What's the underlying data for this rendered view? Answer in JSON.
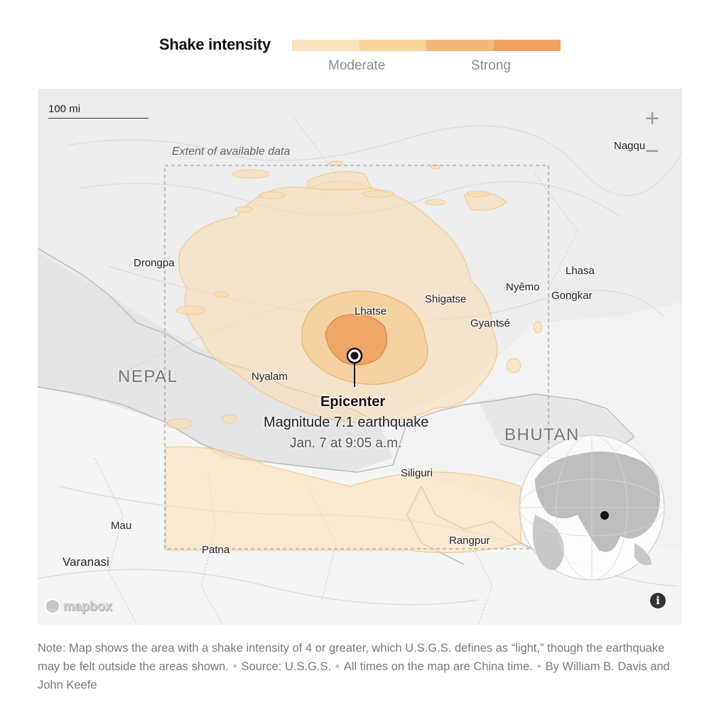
{
  "legend": {
    "title": "Shake intensity",
    "colors": [
      "#fae2c1",
      "#f7d49a",
      "#f4b77a",
      "#f0a062"
    ],
    "labels": [
      "Moderate",
      "Strong"
    ]
  },
  "map": {
    "scale_label": "100 mi",
    "zoom_in": "+",
    "zoom_out": "−",
    "extent_label": "Extent of available data",
    "places": {
      "nagqu": "Nagqu",
      "drongpa": "Drongpa",
      "lhasa": "Lhasa",
      "nyemo": "Nyêmo",
      "gongkar": "Gongkar",
      "shigatse": "Shigatse",
      "lhatse": "Lhatse",
      "gyantse": "Gyantsé",
      "nyalam": "Nyalam",
      "siliguri": "Siliguri",
      "mau": "Mau",
      "patna": "Patna",
      "varanasi": "Varanasi",
      "rangpur": "Rangpur"
    },
    "countries": {
      "nepal": "NEPAL",
      "bhutan": "BHUTAN"
    },
    "epicenter": {
      "title": "Epicenter",
      "magnitude": "Magnitude 7.1 earthquake",
      "time": "Jan. 7 at 9:05 a.m."
    },
    "attribution": "mapbox",
    "info_icon": "i"
  },
  "note": {
    "text": "Note: Map shows the area with a shake intensity of 4 or greater, which U.S.G.S. defines as “light,” though the earthquake may be felt outside the areas shown.",
    "source": "Source: U.S.G.S.",
    "times": "All times on the map are China time.",
    "byline": "By William B. Davis and John Keefe"
  }
}
